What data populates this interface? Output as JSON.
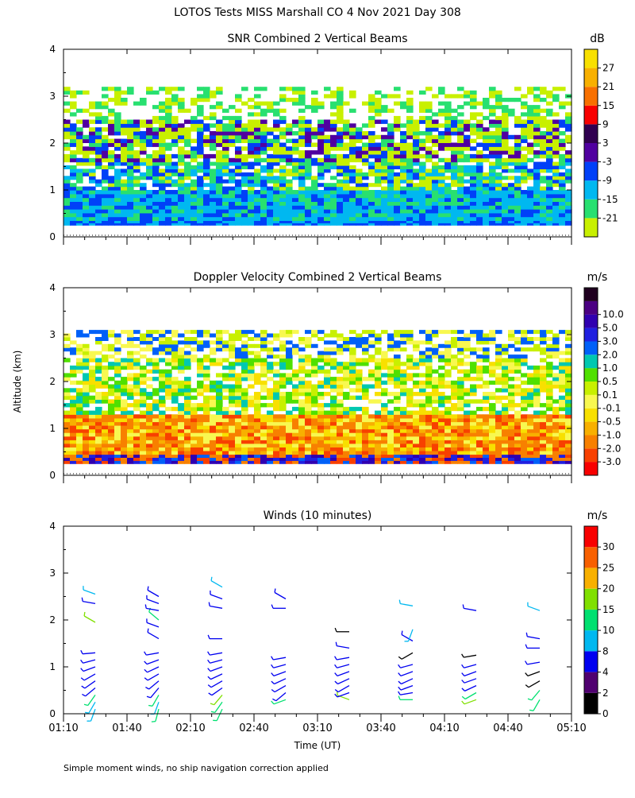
{
  "page": {
    "title": "LOTOS Tests MISS Marshall CO   4 Nov 2021 Day 308",
    "footnote": "Simple moment winds, no ship navigation correction applied",
    "ylabel": "Altitude (km)",
    "xlabel": "Time (UT)"
  },
  "chart_data": [
    {
      "type": "heatmap",
      "title": "SNR Combined 2 Vertical Beams",
      "unit": "dB",
      "xlim": [
        70,
        310
      ],
      "ylim": [
        0,
        4
      ],
      "yticks": [
        "0",
        "1",
        "2",
        "3",
        "4"
      ],
      "xticks": [],
      "colorbar": {
        "colors": [
          "#c8f000",
          "#28e070",
          "#00b8f0",
          "#0040f8",
          "#5000a0",
          "#300050",
          "#f80000",
          "#f87000",
          "#f8b000",
          "#f8e000"
        ],
        "labels": [
          "-21",
          "-15",
          "-9",
          "-3",
          "3",
          "9",
          "15",
          "21",
          "27"
        ]
      },
      "profile": [
        {
          "from": 0.25,
          "to": 0.35,
          "levels": [
            3,
            2
          ]
        },
        {
          "from": 0.35,
          "to": 1.0,
          "levels": [
            2,
            3,
            1,
            2
          ]
        },
        {
          "from": 1.0,
          "to": 1.6,
          "levels": [
            1,
            0,
            2,
            3,
            -1
          ]
        },
        {
          "from": 1.6,
          "to": 2.5,
          "levels": [
            0,
            1,
            -1,
            0,
            3,
            4
          ]
        },
        {
          "from": 2.5,
          "to": 3.2,
          "levels": [
            0,
            -1,
            -1,
            1,
            -1
          ]
        }
      ]
    },
    {
      "type": "heatmap",
      "title": "Doppler Velocity Combined 2 Vertical Beams",
      "unit": "m/s",
      "xlim": [
        70,
        310
      ],
      "ylim": [
        0,
        4
      ],
      "yticks": [
        "0",
        "1",
        "2",
        "3",
        "4"
      ],
      "xticks": [],
      "colorbar": {
        "colors": [
          "#f80000",
          "#f84000",
          "#f88000",
          "#f8b000",
          "#f8e000",
          "#f8f850",
          "#c8f000",
          "#50e000",
          "#00c8b0",
          "#0060f8",
          "#2020e0",
          "#3000b0",
          "#4b0082",
          "#200020"
        ],
        "labels": [
          "-3.0",
          "-2.0",
          "-1.0",
          "-0.5",
          "-0.1",
          "0.1",
          "0.5",
          "1.0",
          "2.0",
          "3.0",
          "5.0",
          "10.0"
        ]
      },
      "profile": [
        {
          "from": 0.25,
          "to": 0.45,
          "levels": [
            10,
            11,
            2,
            9,
            1
          ]
        },
        {
          "from": 0.45,
          "to": 1.3,
          "levels": [
            2,
            3,
            1,
            4,
            2,
            5
          ]
        },
        {
          "from": 1.3,
          "to": 2.5,
          "levels": [
            5,
            6,
            4,
            7,
            -1,
            8,
            -1
          ]
        },
        {
          "from": 2.5,
          "to": 3.1,
          "levels": [
            6,
            -1,
            9,
            -1,
            5
          ]
        }
      ]
    },
    {
      "type": "wind_barbs",
      "title": "Winds (10 minutes)",
      "unit": "m/s",
      "xlim": [
        70,
        310
      ],
      "ylim": [
        0,
        4
      ],
      "yticks": [
        "0",
        "1",
        "2",
        "3",
        "4"
      ],
      "xticks": [
        "01:10",
        "01:40",
        "02:10",
        "02:40",
        "03:10",
        "03:40",
        "04:10",
        "04:40",
        "05:10"
      ],
      "colorbar": {
        "colors": [
          "#000000",
          "#500070",
          "#0000f0",
          "#00b8f0",
          "#00e070",
          "#80e000",
          "#f8b000",
          "#f86000",
          "#f80000"
        ],
        "labels": [
          "0",
          "2",
          "4",
          "8",
          "10",
          "15",
          "20",
          "25",
          "30"
        ]
      },
      "profile_times": [
        85,
        115,
        145,
        175,
        205,
        235,
        265,
        295
      ],
      "profiles": [
        {
          "alt": [
            0.1,
            0.25,
            0.4,
            0.55,
            0.7,
            0.85,
            1.0,
            1.15,
            1.3,
            1.95,
            2.35,
            2.55
          ],
          "dir": [
            200,
            210,
            215,
            230,
            235,
            240,
            250,
            255,
            265,
            300,
            280,
            290
          ],
          "speed": [
            8,
            9,
            10,
            4,
            4,
            4,
            4,
            4,
            4,
            16,
            4,
            9
          ]
        },
        {
          "alt": [
            0.1,
            0.25,
            0.4,
            0.55,
            0.7,
            0.85,
            1.0,
            1.15,
            1.3,
            1.6,
            1.85,
            2.0,
            2.2,
            2.35,
            2.5
          ],
          "dir": [
            195,
            200,
            210,
            220,
            230,
            240,
            245,
            250,
            260,
            300,
            290,
            310,
            280,
            290,
            300
          ],
          "speed": [
            10,
            9,
            12,
            4,
            4,
            4,
            4,
            4,
            4,
            4,
            4,
            10,
            4,
            4,
            4
          ]
        },
        {
          "alt": [
            0.1,
            0.25,
            0.4,
            0.55,
            0.7,
            0.85,
            1.0,
            1.15,
            1.3,
            1.6,
            2.25,
            2.45,
            2.7
          ],
          "dir": [
            205,
            215,
            220,
            235,
            240,
            245,
            250,
            255,
            260,
            270,
            280,
            290,
            300
          ],
          "speed": [
            10,
            12,
            15,
            4,
            4,
            4,
            4,
            4,
            4,
            4,
            4,
            4,
            9
          ]
        },
        {
          "alt": [
            0.3,
            0.45,
            0.6,
            0.75,
            0.9,
            1.05,
            1.2,
            2.25,
            2.45
          ],
          "dir": [
            250,
            230,
            240,
            245,
            250,
            255,
            260,
            270,
            300
          ],
          "speed": [
            10,
            4,
            4,
            4,
            4,
            4,
            4,
            4,
            4
          ]
        },
        {
          "alt": [
            0.3,
            0.45,
            0.6,
            0.75,
            0.9,
            1.05,
            1.2,
            1.4,
            1.75
          ],
          "dir": [
            290,
            250,
            240,
            245,
            250,
            255,
            260,
            280,
            270
          ],
          "speed": [
            15,
            4,
            4,
            4,
            4,
            4,
            4,
            4,
            1
          ]
        },
        {
          "alt": [
            0.3,
            0.45,
            0.6,
            0.75,
            0.9,
            1.05,
            1.3,
            1.55,
            1.8,
            2.3
          ],
          "dir": [
            270,
            260,
            250,
            245,
            250,
            255,
            240,
            300,
            200,
            280
          ],
          "speed": [
            10,
            4,
            4,
            4,
            4,
            4,
            1,
            4,
            9,
            9
          ]
        },
        {
          "alt": [
            0.3,
            0.45,
            0.6,
            0.75,
            0.9,
            1.05,
            1.25,
            2.2
          ],
          "dir": [
            250,
            240,
            245,
            250,
            250,
            255,
            260,
            280
          ],
          "speed": [
            15,
            10,
            4,
            4,
            4,
            4,
            1,
            4
          ]
        },
        {
          "alt": [
            0.3,
            0.5,
            0.7,
            0.9,
            1.1,
            1.4,
            1.6,
            2.2
          ],
          "dir": [
            210,
            220,
            240,
            250,
            260,
            270,
            280,
            290
          ],
          "speed": [
            12,
            12,
            1,
            1,
            4,
            4,
            4,
            9
          ]
        }
      ]
    }
  ]
}
